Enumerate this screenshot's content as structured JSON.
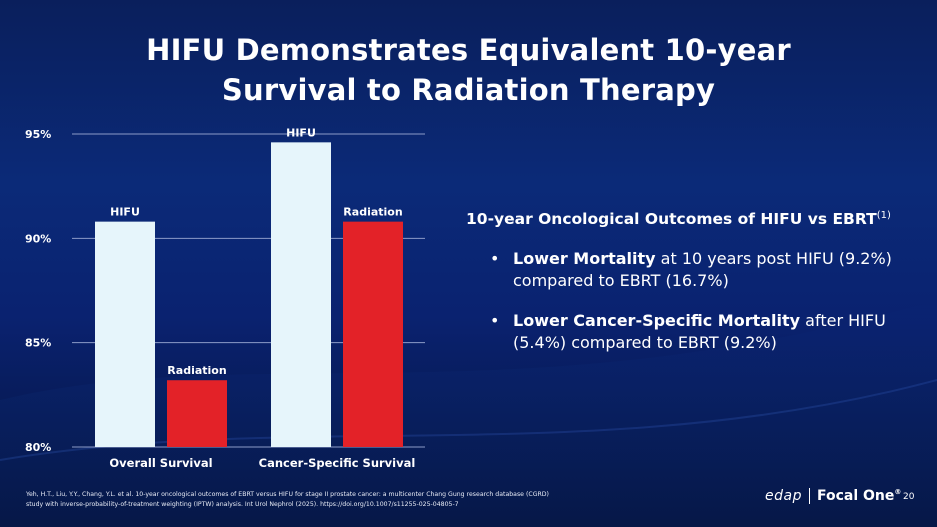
{
  "title_line1": "HIFU Demonstrates Equivalent 10-year",
  "title_line2": "Survival to Radiation Therapy",
  "chart_data": {
    "type": "bar",
    "categories": [
      "Overall Survival",
      "Cancer-Specific Survival"
    ],
    "series": [
      {
        "name": "HIFU",
        "color": "#e6f5fb",
        "values": [
          90.8,
          94.6
        ]
      },
      {
        "name": "Radiation",
        "color": "#e32228",
        "values": [
          83.2,
          90.8
        ]
      }
    ],
    "bar_labels": [
      [
        "HIFU",
        "Radiation"
      ],
      [
        "HIFU",
        "Radiation"
      ]
    ],
    "yticks": [
      "95%",
      "90%",
      "85%",
      "80%"
    ],
    "ytick_values": [
      95,
      90,
      85,
      80
    ],
    "ylim": [
      80,
      95
    ],
    "grid": true,
    "title": "",
    "xlabel": "",
    "ylabel": ""
  },
  "outcomes": {
    "heading": "10-year Oncological Outcomes of HIFU vs EBRT",
    "heading_sup": "(1)",
    "bullets": [
      {
        "bold": "Lower Mortality",
        "rest": " at 10 years post HIFU (9.2%) compared to EBRT (16.7%)"
      },
      {
        "bold": "Lower Cancer-Specific Mortality",
        "rest": " after HIFU (5.4%) compared to EBRT (9.2%)"
      }
    ]
  },
  "footnote": {
    "line1": "Yeh, H.T., Liu, Y.Y., Chang, Y.L. et al. 10-year oncological outcomes of EBRT versus HIFU for stage II prostate cancer: a multicenter Chang Gung research database (CGRD)",
    "line2": "study with inverse-probability-of-treatment weighting (IPTW) analysis. Int Urol Nephrol (2025). https://doi.org/10.1007/s11255-025-04805-7"
  },
  "logo": {
    "brand": "edap",
    "product": "Focal One",
    "mark": "®"
  },
  "page_number": "20",
  "colors": {
    "background": "#0b2a78",
    "hifu_bar": "#e6f5fb",
    "radiation_bar": "#e32228",
    "grid": "#8c9bc8"
  }
}
